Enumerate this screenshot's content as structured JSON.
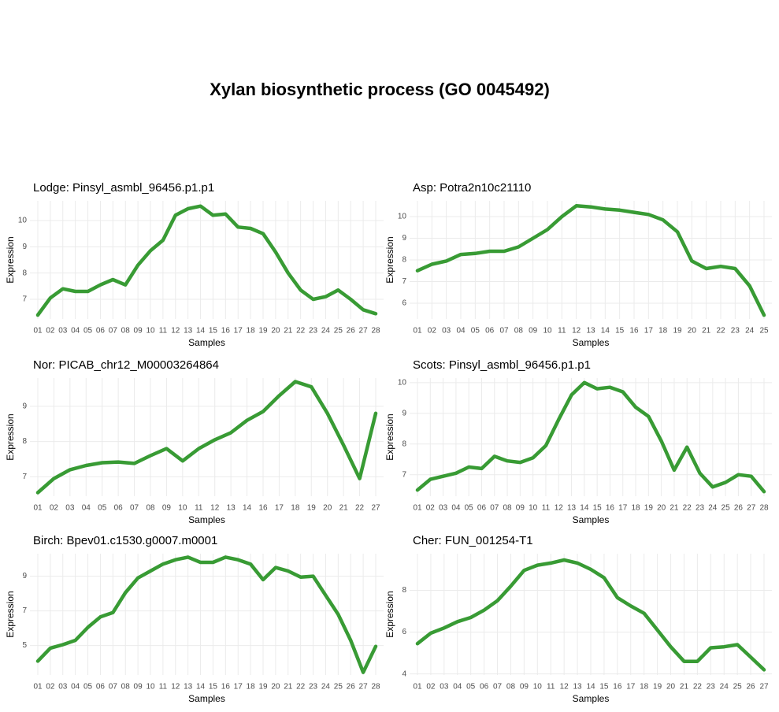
{
  "title": "Xylan biosynthetic process (GO 0045492)",
  "chart_data": [
    {
      "type": "line",
      "title": "Lodge: Pinsyl_asmbl_96456.p1.p1",
      "xlabel": "Samples",
      "ylabel": "Expression",
      "color": "#389b34",
      "grid": true,
      "categories": [
        "01",
        "02",
        "03",
        "04",
        "05",
        "06",
        "07",
        "08",
        "09",
        "10",
        "11",
        "12",
        "13",
        "14",
        "15",
        "16",
        "17",
        "18",
        "19",
        "20",
        "21",
        "22",
        "23",
        "24",
        "25",
        "26",
        "27",
        "28"
      ],
      "values": [
        6.4,
        7.05,
        7.4,
        7.3,
        7.3,
        7.55,
        7.75,
        7.55,
        8.3,
        8.85,
        9.25,
        10.2,
        10.45,
        10.55,
        10.2,
        10.25,
        9.75,
        9.7,
        9.5,
        8.8,
        8.0,
        7.35,
        7.0,
        7.1,
        7.35,
        7.0,
        6.6,
        6.45
      ],
      "ylim": [
        6.25,
        10.75
      ],
      "yticks": [
        7,
        8,
        9,
        10
      ]
    },
    {
      "type": "line",
      "title": "Asp: Potra2n10c21110",
      "xlabel": "Samples",
      "ylabel": "Expression",
      "color": "#389b34",
      "grid": true,
      "categories": [
        "01",
        "02",
        "03",
        "04",
        "05",
        "06",
        "07",
        "08",
        "09",
        "10",
        "11",
        "12",
        "13",
        "14",
        "15",
        "16",
        "17",
        "18",
        "19",
        "20",
        "21",
        "22",
        "23",
        "24",
        "25"
      ],
      "values": [
        7.5,
        7.8,
        7.95,
        8.25,
        8.3,
        8.4,
        8.4,
        8.6,
        9.0,
        9.4,
        10.0,
        10.5,
        10.45,
        10.35,
        10.3,
        10.2,
        10.1,
        9.85,
        9.3,
        7.95,
        7.6,
        7.7,
        7.6,
        6.8,
        5.45
      ],
      "ylim": [
        5.27,
        10.73
      ],
      "yticks": [
        6,
        7,
        8,
        9,
        10
      ]
    },
    {
      "type": "line",
      "title": "Nor: PICAB_chr12_M00003264864",
      "xlabel": "Samples",
      "ylabel": "Expression",
      "color": "#389b34",
      "grid": true,
      "categories": [
        "01",
        "02",
        "03",
        "04",
        "05",
        "06",
        "07",
        "08",
        "09",
        "10",
        "11",
        "12",
        "13",
        "14",
        "16",
        "17",
        "18",
        "19",
        "20",
        "21",
        "22",
        "27"
      ],
      "values": [
        6.55,
        6.95,
        7.2,
        7.32,
        7.4,
        7.42,
        7.38,
        7.6,
        7.8,
        7.45,
        7.8,
        8.05,
        8.25,
        8.6,
        8.85,
        9.3,
        9.7,
        9.55,
        8.8,
        7.9,
        6.95,
        8.8
      ],
      "ylim": [
        6.45,
        9.8
      ],
      "yticks": [
        7,
        8,
        9
      ]
    },
    {
      "type": "line",
      "title": "Scots: Pinsyl_asmbl_96456.p1.p1",
      "xlabel": "Samples",
      "ylabel": "Expression",
      "color": "#389b34",
      "grid": true,
      "categories": [
        "01",
        "02",
        "03",
        "04",
        "05",
        "06",
        "07",
        "08",
        "09",
        "10",
        "11",
        "12",
        "13",
        "14",
        "15",
        "16",
        "17",
        "18",
        "19",
        "20",
        "21",
        "22",
        "23",
        "24",
        "25",
        "26",
        "27",
        "28"
      ],
      "values": [
        6.5,
        6.85,
        6.95,
        7.05,
        7.25,
        7.2,
        7.6,
        7.45,
        7.4,
        7.55,
        7.95,
        8.8,
        9.6,
        10.0,
        9.8,
        9.85,
        9.7,
        9.2,
        8.9,
        8.1,
        7.15,
        7.9,
        7.05,
        6.6,
        6.75,
        7.0,
        6.95,
        6.45
      ],
      "ylim": [
        6.3,
        10.15
      ],
      "yticks": [
        7,
        8,
        9,
        10
      ]
    },
    {
      "type": "line",
      "title": "Birch: Bpev01.c1530.g0007.m0001",
      "xlabel": "Samples",
      "ylabel": "Expression",
      "color": "#389b34",
      "grid": true,
      "categories": [
        "01",
        "02",
        "03",
        "04",
        "05",
        "06",
        "07",
        "08",
        "09",
        "10",
        "11",
        "12",
        "13",
        "14",
        "15",
        "16",
        "17",
        "18",
        "19",
        "20",
        "21",
        "22",
        "23",
        "24",
        "25",
        "26",
        "27",
        "28"
      ],
      "values": [
        4.1,
        4.85,
        5.05,
        5.3,
        6.05,
        6.65,
        6.9,
        8.05,
        8.9,
        9.3,
        9.7,
        9.95,
        10.1,
        9.8,
        9.8,
        10.1,
        9.95,
        9.7,
        8.8,
        9.5,
        9.3,
        8.95,
        9.0,
        7.9,
        6.8,
        5.3,
        3.45,
        4.95
      ],
      "ylim": [
        3.3,
        10.3
      ],
      "yticks": [
        5,
        7,
        9
      ]
    },
    {
      "type": "line",
      "title": "Cher: FUN_001254-T1",
      "xlabel": "Samples",
      "ylabel": "Expression",
      "color": "#389b34",
      "grid": true,
      "categories": [
        "01",
        "02",
        "03",
        "04",
        "05",
        "06",
        "07",
        "08",
        "09",
        "10",
        "11",
        "12",
        "13",
        "14",
        "15",
        "16",
        "17",
        "18",
        "19",
        "20",
        "21",
        "22",
        "23",
        "24",
        "25",
        "26",
        "27"
      ],
      "values": [
        5.45,
        5.95,
        6.2,
        6.5,
        6.7,
        7.05,
        7.5,
        8.2,
        8.95,
        9.2,
        9.3,
        9.45,
        9.3,
        9.0,
        8.6,
        7.65,
        7.25,
        6.9,
        6.1,
        5.3,
        4.6,
        4.6,
        5.25,
        5.3,
        5.4,
        4.8,
        4.2
      ],
      "ylim": [
        3.95,
        9.75
      ],
      "yticks": [
        4,
        6,
        8
      ]
    }
  ]
}
